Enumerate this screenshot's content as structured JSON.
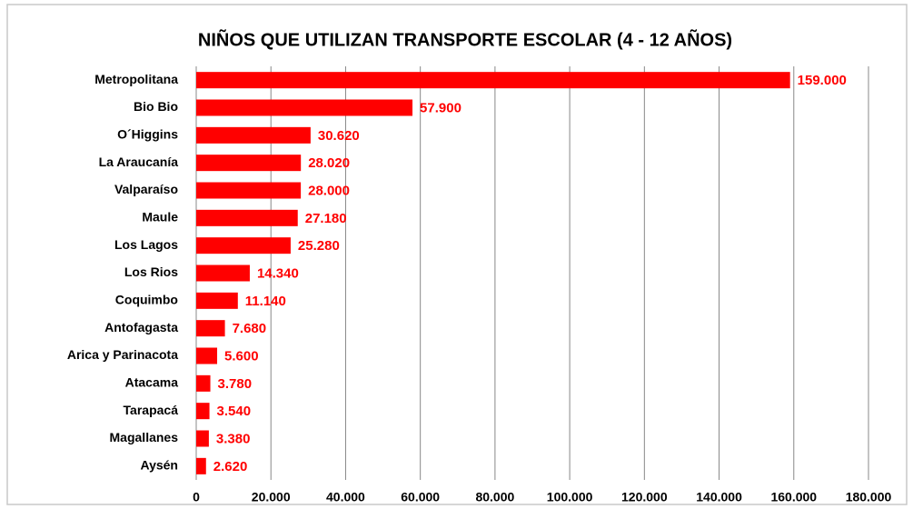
{
  "chart_data": {
    "type": "hbar",
    "title": "NIÑOS QUE UTILIZAN TRANSPORTE ESCOLAR (4 - 12 AÑOS)",
    "categories": [
      "Metropolitana",
      "Bio Bio",
      "O´Higgins",
      "La Araucanía",
      "Valparaíso",
      "Maule",
      "Los Lagos",
      "Los Rios",
      "Coquimbo",
      "Antofagasta",
      "Arica y Parinacota",
      "Atacama",
      "Tarapacá",
      "Magallanes",
      "Aysén"
    ],
    "values": [
      159000,
      57900,
      30620,
      28020,
      28000,
      27180,
      25280,
      14340,
      11140,
      7680,
      5600,
      3780,
      3540,
      3380,
      2620
    ],
    "value_labels": [
      "159.000",
      "57.900",
      "30.620",
      "28.020",
      "28.000",
      "27.180",
      "25.280",
      "14.340",
      "11.140",
      "7.680",
      "5.600",
      "3.780",
      "3.540",
      "3.380",
      "2.620"
    ],
    "color": "#ff0000",
    "xlim": [
      0,
      180000
    ],
    "xticks": [
      0,
      {
        "value": 20000,
        "label": "20.000"
      },
      {
        "value": 40000,
        "label": "40.000"
      },
      {
        "value": 60000,
        "label": "60.000"
      },
      {
        "value": 80000,
        "label": "80.000"
      },
      {
        "value": 100000,
        "label": "100.000"
      },
      {
        "value": 120000,
        "label": "120.000"
      },
      {
        "value": 140000,
        "label": "140.000"
      },
      {
        "value": 160000,
        "label": "160.000"
      },
      {
        "value": 180000,
        "label": "180.000"
      }
    ],
    "grid": true
  }
}
